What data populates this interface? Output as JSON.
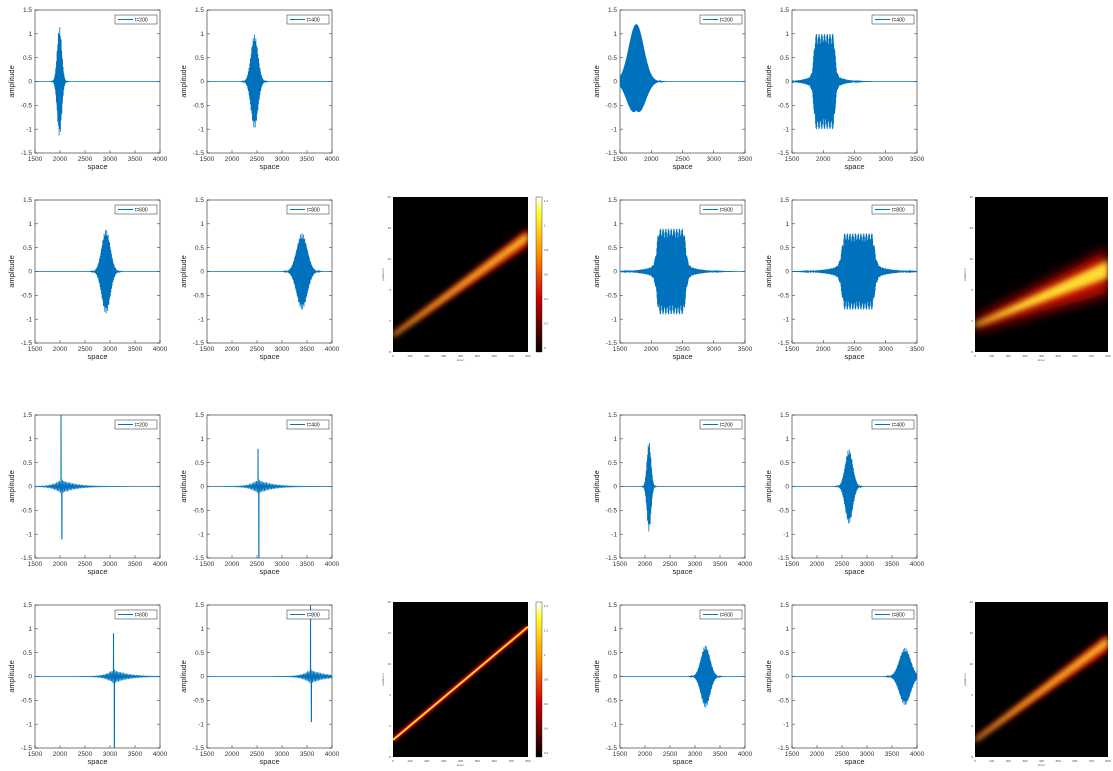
{
  "figure": {
    "groups": [
      {
        "xticks": [
          "1500",
          "2000",
          "2500",
          "3000",
          "3500",
          "4000"
        ],
        "panels": [
          {
            "legend": "t=200",
            "kind": "gauss",
            "center": 1990,
            "amp": 1.15,
            "width": 45
          },
          {
            "legend": "t=400",
            "kind": "gauss",
            "center": 2450,
            "amp": 0.98,
            "width": 70
          },
          {
            "legend": "t=600",
            "kind": "gauss",
            "center": 2920,
            "amp": 0.88,
            "width": 85
          },
          {
            "legend": "t=800",
            "kind": "gauss",
            "center": 3400,
            "amp": 0.8,
            "width": 105
          }
        ],
        "heatmap": {
          "colorbar": true,
          "cbticks": [
            "1.2",
            "1",
            "0.8",
            "0.6",
            "0.4",
            "0.2",
            "0"
          ]
        }
      },
      {
        "xticks": [
          "1500",
          "2000",
          "2500",
          "3000",
          "3500"
        ],
        "panels": [
          {
            "legend": "t=200",
            "kind": "gauss",
            "center": 1760,
            "amp": 1.2,
            "width": 120
          },
          {
            "legend": "t=400",
            "kind": "flat",
            "center": 2020,
            "amp": 1.0,
            "width": 170
          },
          {
            "legend": "t=600",
            "kind": "flat",
            "center": 2320,
            "amp": 0.9,
            "width": 230
          },
          {
            "legend": "t=800",
            "kind": "flat",
            "center": 2560,
            "amp": 0.8,
            "width": 260
          }
        ],
        "heatmap": {
          "colorbar": false
        }
      },
      {
        "xticks": [
          "1500",
          "2000",
          "2500",
          "3000",
          "3500",
          "4000"
        ],
        "panels": [
          {
            "legend": "t=200",
            "kind": "ringing",
            "center": 2020,
            "amp": 1.5,
            "neg": 1.1
          },
          {
            "legend": "t=400",
            "kind": "ringing",
            "center": 2520,
            "amp": 0.78,
            "neg": 1.5
          },
          {
            "legend": "t=600",
            "kind": "ringing",
            "center": 3070,
            "amp": 0.9,
            "neg": 1.5
          },
          {
            "legend": "t=800",
            "kind": "ringing",
            "center": 3570,
            "amp": 1.5,
            "neg": 0.95
          }
        ],
        "heatmap": {
          "colorbar": true,
          "cbticks": [
            "1.4",
            "1.2",
            "1",
            "0.8",
            "0.6",
            "0.4",
            "0.2"
          ]
        }
      },
      {
        "xticks": [
          "1500",
          "2000",
          "2500",
          "3000",
          "3500",
          "4000"
        ],
        "panels": [
          {
            "legend": "t=200",
            "kind": "gauss",
            "center": 2080,
            "amp": 0.95,
            "width": 40
          },
          {
            "legend": "t=400",
            "kind": "gauss",
            "center": 2640,
            "amp": 0.78,
            "width": 75
          },
          {
            "legend": "t=600",
            "kind": "gauss",
            "center": 3210,
            "amp": 0.65,
            "width": 90
          },
          {
            "legend": "t=800",
            "kind": "gauss",
            "center": 3760,
            "amp": 0.6,
            "width": 110
          }
        ],
        "heatmap": {
          "colorbar": false
        }
      }
    ],
    "yticks": [
      "1.5",
      "1",
      "0.5",
      "0",
      "-0.5",
      "-1",
      "-1.5"
    ],
    "ylabel": "amplitude",
    "xlabel": "space",
    "hm_xticks": [
      "0",
      "100",
      "200",
      "300",
      "400",
      "500",
      "600",
      "700",
      "800"
    ],
    "hm_yticks": [
      "20",
      "15",
      "10",
      "5",
      "0",
      "-5"
    ],
    "hm_xlabel": "time t",
    "hm_ylabel": "position x"
  },
  "colors": {
    "line": "#0072BD"
  },
  "chart_data": [
    {
      "type": "line",
      "xlabel": "space",
      "ylabel": "amplitude",
      "ylim": [
        -1.5,
        1.5
      ],
      "xlim": [
        1500,
        4000
      ],
      "series": [
        {
          "name": "t=200",
          "values": []
        },
        {
          "name": "t=400",
          "values": []
        },
        {
          "name": "t=600",
          "values": []
        },
        {
          "name": "t=800",
          "values": []
        }
      ]
    },
    {
      "type": "heatmap",
      "xlabel": "time t",
      "ylabel": "position x",
      "xlim": [
        0,
        800
      ],
      "ylim": [
        -5,
        20
      ],
      "colorbar": [
        0,
        1.3
      ]
    },
    {
      "type": "line",
      "xlabel": "space",
      "ylabel": "amplitude",
      "ylim": [
        -1.5,
        1.5
      ],
      "xlim": [
        1500,
        3500
      ],
      "series": [
        {
          "name": "t=200",
          "values": []
        },
        {
          "name": "t=400",
          "values": []
        },
        {
          "name": "t=600",
          "values": []
        },
        {
          "name": "t=800",
          "values": []
        }
      ]
    },
    {
      "type": "heatmap",
      "xlabel": "time t",
      "ylabel": "position x",
      "xlim": [
        0,
        800
      ],
      "ylim": [
        -5,
        20
      ]
    },
    {
      "type": "line",
      "xlabel": "space",
      "ylabel": "amplitude",
      "ylim": [
        -1.5,
        1.5
      ],
      "xlim": [
        1500,
        4000
      ],
      "series": [
        {
          "name": "t=200",
          "values": []
        },
        {
          "name": "t=400",
          "values": []
        },
        {
          "name": "t=600",
          "values": []
        },
        {
          "name": "t=800",
          "values": []
        }
      ]
    },
    {
      "type": "heatmap",
      "xlabel": "time t",
      "ylabel": "position x",
      "xlim": [
        0,
        800
      ],
      "ylim": [
        -5,
        20
      ],
      "colorbar": [
        0.1,
        1.5
      ]
    },
    {
      "type": "line",
      "xlabel": "space",
      "ylabel": "amplitude",
      "ylim": [
        -1.5,
        1.5
      ],
      "xlim": [
        1500,
        4000
      ],
      "series": [
        {
          "name": "t=200",
          "values": []
        },
        {
          "name": "t=400",
          "values": []
        },
        {
          "name": "t=600",
          "values": []
        },
        {
          "name": "t=800",
          "values": []
        }
      ]
    },
    {
      "type": "heatmap",
      "xlabel": "time t",
      "ylabel": "position x",
      "xlim": [
        0,
        800
      ],
      "ylim": [
        -5,
        20
      ]
    }
  ]
}
